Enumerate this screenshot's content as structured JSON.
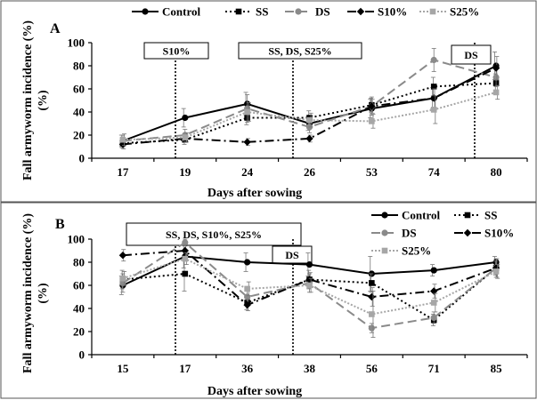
{
  "figure": {
    "panels": [
      "A",
      "B"
    ]
  },
  "chart_data": [
    {
      "panel": "A",
      "type": "line",
      "ylabel": "Fall armyworm incidence (%)",
      "xlabel": "Days after sowing",
      "categories": [
        "17",
        "19",
        "24",
        "26",
        "53",
        "74",
        "80"
      ],
      "ylim": [
        0,
        100
      ],
      "yticks": [
        0,
        20,
        40,
        60,
        80,
        100
      ],
      "legend": "top",
      "series": [
        {
          "name": "Control",
          "values": [
            15,
            35,
            47,
            30,
            43,
            52,
            80
          ],
          "errors": [
            5,
            8,
            10,
            6,
            8,
            9,
            12
          ],
          "color": "#000000",
          "dash": "",
          "marker": "circle"
        },
        {
          "name": "SS",
          "values": [
            13,
            16,
            35,
            35,
            46,
            62,
            65
          ],
          "errors": [
            4,
            4,
            6,
            6,
            6,
            8,
            8
          ],
          "color": "#000000",
          "dash": "2 3",
          "marker": "square"
        },
        {
          "name": "DS",
          "values": [
            15,
            20,
            43,
            27,
            45,
            85,
            70
          ],
          "errors": [
            5,
            5,
            12,
            5,
            8,
            10,
            8
          ],
          "color": "#8a8a8a",
          "dash": "10 5",
          "marker": "circle"
        },
        {
          "name": "S10%",
          "values": [
            12,
            17,
            14,
            17,
            45,
            52,
            78
          ],
          "errors": [
            4,
            3,
            3,
            3,
            6,
            8,
            10
          ],
          "color": "#000000",
          "dash": "10 4 2 4",
          "marker": "diamond"
        },
        {
          "name": "S25%",
          "values": [
            16,
            18,
            40,
            33,
            32,
            42,
            57
          ],
          "errors": [
            5,
            4,
            8,
            6,
            6,
            12,
            6
          ],
          "color": "#a6a6a6",
          "dash": "2 2",
          "marker": "square"
        }
      ],
      "annotations": [
        {
          "text": "S10%",
          "after_index": 0
        },
        {
          "text": "SS, DS, S25%",
          "after_index": 3
        },
        {
          "text": "DS",
          "after_index": 5
        }
      ]
    },
    {
      "panel": "B",
      "type": "line",
      "ylabel": "Fall armyworm incidence (%)",
      "xlabel": "Days after sowing",
      "categories": [
        "15",
        "17",
        "36",
        "38",
        "56",
        "71",
        "85"
      ],
      "ylim": [
        0,
        100
      ],
      "yticks": [
        0,
        20,
        40,
        60,
        80,
        100
      ],
      "legend": "top-right",
      "series": [
        {
          "name": "Control",
          "values": [
            60,
            85,
            80,
            78,
            70,
            73,
            80
          ],
          "errors": [
            8,
            10,
            8,
            10,
            15,
            5,
            5
          ],
          "color": "#000000",
          "dash": "",
          "marker": "circle"
        },
        {
          "name": "SS",
          "values": [
            65,
            70,
            45,
            65,
            62,
            30,
            75
          ],
          "errors": [
            8,
            15,
            6,
            8,
            8,
            5,
            6
          ],
          "color": "#000000",
          "dash": "2 3",
          "marker": "square"
        },
        {
          "name": "DS",
          "values": [
            62,
            97,
            50,
            62,
            23,
            32,
            75
          ],
          "errors": [
            8,
            3,
            8,
            8,
            4,
            5,
            8
          ],
          "color": "#8a8a8a",
          "dash": "10 5",
          "marker": "circle"
        },
        {
          "name": "S10%",
          "values": [
            86,
            90,
            43,
            65,
            50,
            55,
            75
          ],
          "errors": [
            5,
            5,
            5,
            6,
            8,
            6,
            8
          ],
          "color": "#000000",
          "dash": "10 4 2 4",
          "marker": "diamond"
        },
        {
          "name": "S25%",
          "values": [
            66,
            83,
            57,
            60,
            35,
            45,
            72
          ],
          "errors": [
            6,
            5,
            6,
            6,
            20,
            8,
            6
          ],
          "color": "#a6a6a6",
          "dash": "2 2",
          "marker": "square"
        }
      ],
      "annotations": [
        {
          "text": "SS, DS, S10%, S25%",
          "after_index": 0
        },
        {
          "text": "DS",
          "after_index": 2
        }
      ]
    }
  ]
}
